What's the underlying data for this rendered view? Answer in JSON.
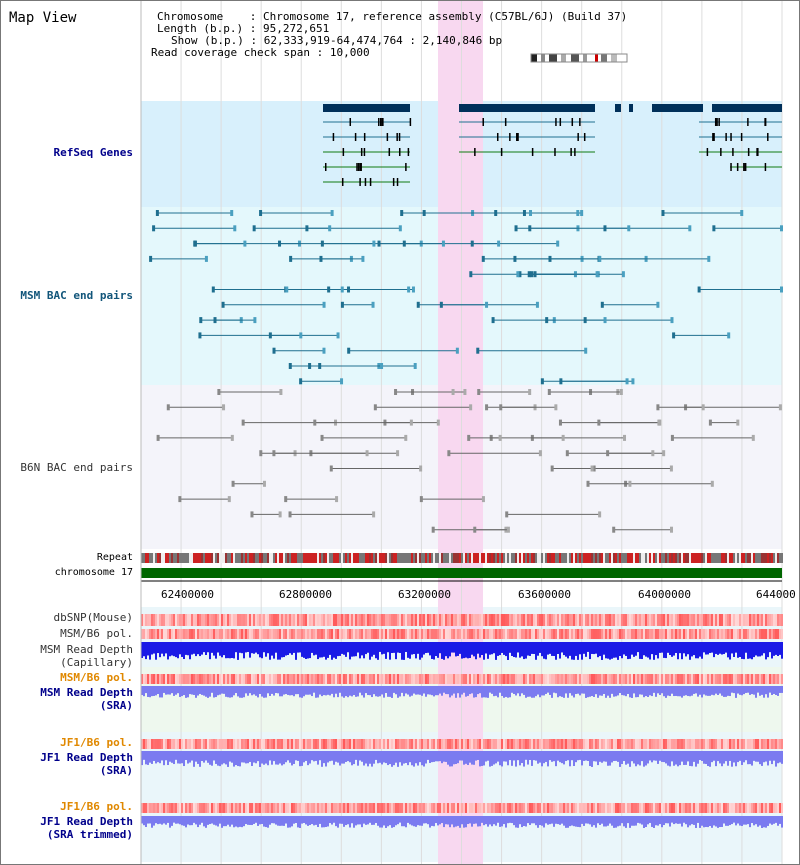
{
  "header": {
    "title": "Map View",
    "chromosome_key": "Chromosome",
    "chromosome_val": "Chromosome 17, reference assembly (C57BL/6J) (Build 37)",
    "length_key": "Length (b.p.)",
    "length_val": "95,272,651",
    "show_key": "Show (b.p.)",
    "show_val": "62,333,919-64,474,764 : 2,140,846 bp",
    "coverage_key": "Read coverage check span",
    "coverage_val": "10,000"
  },
  "tracks": {
    "refseq": "RefSeq Genes",
    "msm_bac": "MSM BAC end pairs",
    "b6n_bac": "B6N BAC end pairs",
    "repeat": "Repeat",
    "chromosome": "chromosome 17",
    "dbsnp": "dbSNP(Mouse)",
    "msm_b6_pol": "MSM/B6 pol.",
    "msm_read_depth_cap_1": "MSM Read Depth",
    "msm_read_depth_cap_2": "(Capillary)",
    "msm_b6_pol_2": "MSM/B6 pol.",
    "msm_read_depth_sra_1": "MSM Read Depth",
    "msm_read_depth_sra_2": "(SRA)",
    "jf1_b6_pol": "JF1/B6 pol.",
    "jf1_read_depth_sra_1": "JF1 Read Depth",
    "jf1_read_depth_sra_2": "(SRA)",
    "jf1_b6_pol_2": "JF1/B6 pol.",
    "jf1_read_depth_trim_1": "JF1 Read Depth",
    "jf1_read_depth_trim_2": "(SRA trimmed)"
  },
  "axis": {
    "ticks": [
      "62400000",
      "62800000",
      "63200000",
      "63600000",
      "64000000",
      "644000"
    ]
  },
  "colors": {
    "refseq_bg": "#d8f0fc",
    "msm_bg": "#e4f8fc",
    "b6n_bg": "#f4f4fa",
    "highlight": "#f8d8f0",
    "gene_dark": "#00305a",
    "msm_line": "#1f6f8f",
    "b6n_line": "#666666",
    "chromosome_bar": "#006600",
    "depth_blue": "#1a1ae6",
    "depth_lavender": "#7b7bf0",
    "label_blue": "#00008b",
    "label_teal": "#11557a",
    "label_orange": "#e08800"
  }
}
